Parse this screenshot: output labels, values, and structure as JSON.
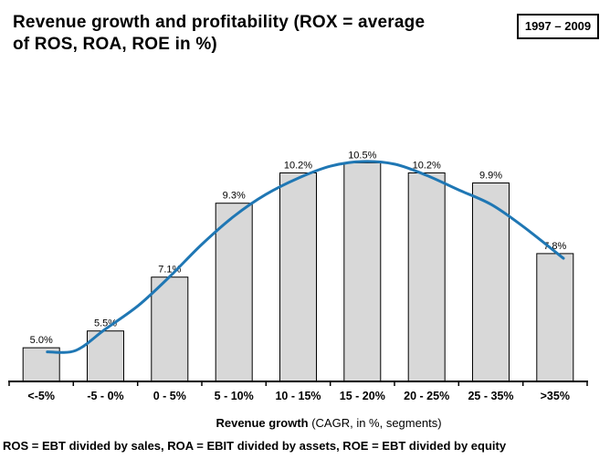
{
  "title": {
    "line1": "Revenue growth and profitability (ROX = average",
    "line2": "of ROS, ROA, ROE in %)"
  },
  "period_badge": "1997 – 2009",
  "x_axis_title": {
    "bold": "Revenue growth",
    "regular": " (CAGR, in %, segments)"
  },
  "footnote": "ROS = EBT divided by sales, ROA = EBIT divided by assets, ROE = EBT divided by equity",
  "colors": {
    "curve": "#1f77b4",
    "bar_fill": "#d8d8d8",
    "bar_stroke": "#000000",
    "axis": "#000000",
    "text": "#000000",
    "badge_border": "#000000"
  },
  "chart_data": {
    "type": "bar",
    "title": "Revenue growth and profitability (ROX = average of ROS, ROA, ROE in %)",
    "period": "1997 – 2009",
    "categories": [
      "<-5%",
      "-5 - 0%",
      "0 - 5%",
      "5 - 10%",
      "10 - 15%",
      "15 - 20%",
      "20 - 25%",
      "25 - 35%",
      ">35%"
    ],
    "values": [
      5.0,
      5.5,
      7.1,
      9.3,
      10.2,
      10.5,
      10.2,
      9.9,
      7.8
    ],
    "value_labels": [
      "5.0%",
      "5.5%",
      "7.1%",
      "9.3%",
      "10.2%",
      "10.5%",
      "10.2%",
      "9.9%",
      "7.8%"
    ],
    "xlabel": "Revenue growth (CAGR, in %, segments)",
    "ylabel": "",
    "ylim": [
      4,
      11
    ],
    "grid": false,
    "legend": false,
    "trend_curve": {
      "points_x_fraction_value": [
        [
          0.066,
          4.88
        ],
        [
          0.115,
          4.92
        ],
        [
          0.166,
          5.55
        ],
        [
          0.223,
          6.25
        ],
        [
          0.278,
          7.12
        ],
        [
          0.333,
          8.07
        ],
        [
          0.389,
          8.91
        ],
        [
          0.444,
          9.56
        ],
        [
          0.501,
          10.05
        ],
        [
          0.556,
          10.4
        ],
        [
          0.611,
          10.54
        ],
        [
          0.667,
          10.46
        ],
        [
          0.722,
          10.13
        ],
        [
          0.777,
          9.7
        ],
        [
          0.834,
          9.26
        ],
        [
          0.889,
          8.61
        ],
        [
          0.959,
          7.66
        ]
      ]
    }
  }
}
